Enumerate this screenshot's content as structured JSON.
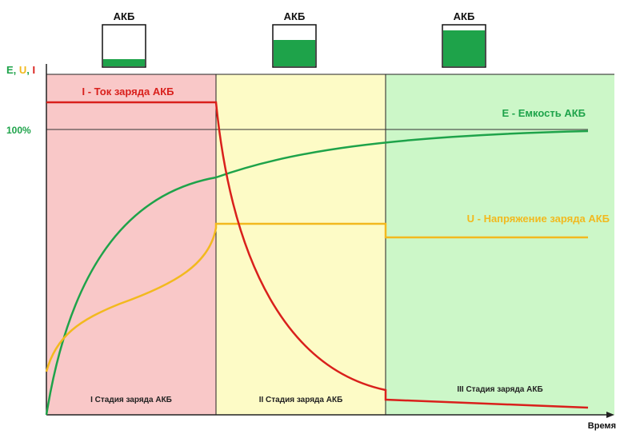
{
  "batteries": [
    {
      "label": "АКБ"
    },
    {
      "label": "АКБ"
    },
    {
      "label": "АКБ"
    }
  ],
  "axis": {
    "y_label_parts": [
      "E",
      ", ",
      "U",
      ", ",
      "I"
    ],
    "y_mark": "100%",
    "x_label": "Время"
  },
  "curves": {
    "current": "I - Ток заряда АКБ",
    "capacity": "E - Емкость АКБ",
    "voltage": "U - Напряжение заряда АКБ"
  },
  "stages": [
    "I Стадия заряда АКБ",
    "II Стадия заряда АКБ",
    "III Стадия заряда АКБ"
  ]
}
